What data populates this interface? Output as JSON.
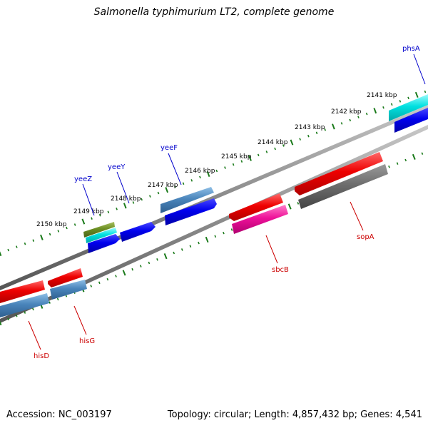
{
  "title": "Salmonella typhimurium LT2, complete genome",
  "footer": {
    "accession": "Accession: NC_003197",
    "summary": "Topology: circular; Length: 4,857,432 bp; Genes: 4,541"
  },
  "colors": {
    "backbone": "#8a8a8a",
    "ticks": "#1a7a1a",
    "forward_label": "#0000cc",
    "reverse_label": "#cc0000"
  },
  "tick_labels": [
    "2141 kbp",
    "2142 kbp",
    "2143 kbp",
    "2144 kbp",
    "2145 kbp",
    "2146 kbp",
    "2147 kbp",
    "2148 kbp",
    "2149 kbp",
    "2150 kbp"
  ],
  "genes": [
    {
      "name": "phsA",
      "strand": "forward",
      "color": "#00e5e5"
    },
    {
      "name": "yeeF",
      "strand": "forward",
      "color": "#4f8fcf"
    },
    {
      "name": "yeeY",
      "strand": "forward",
      "color": "#0000ee"
    },
    {
      "name": "yeeZ",
      "strand": "forward",
      "color": "#6b8e23"
    },
    {
      "name": "sopA",
      "strand": "reverse",
      "color": "#ee0000"
    },
    {
      "name": "sbcB",
      "strand": "reverse",
      "color": "#ee0000"
    },
    {
      "name": "hisG",
      "strand": "reverse",
      "color": "#ee0000"
    },
    {
      "name": "hisD",
      "strand": "reverse",
      "color": "#ee0000"
    }
  ]
}
